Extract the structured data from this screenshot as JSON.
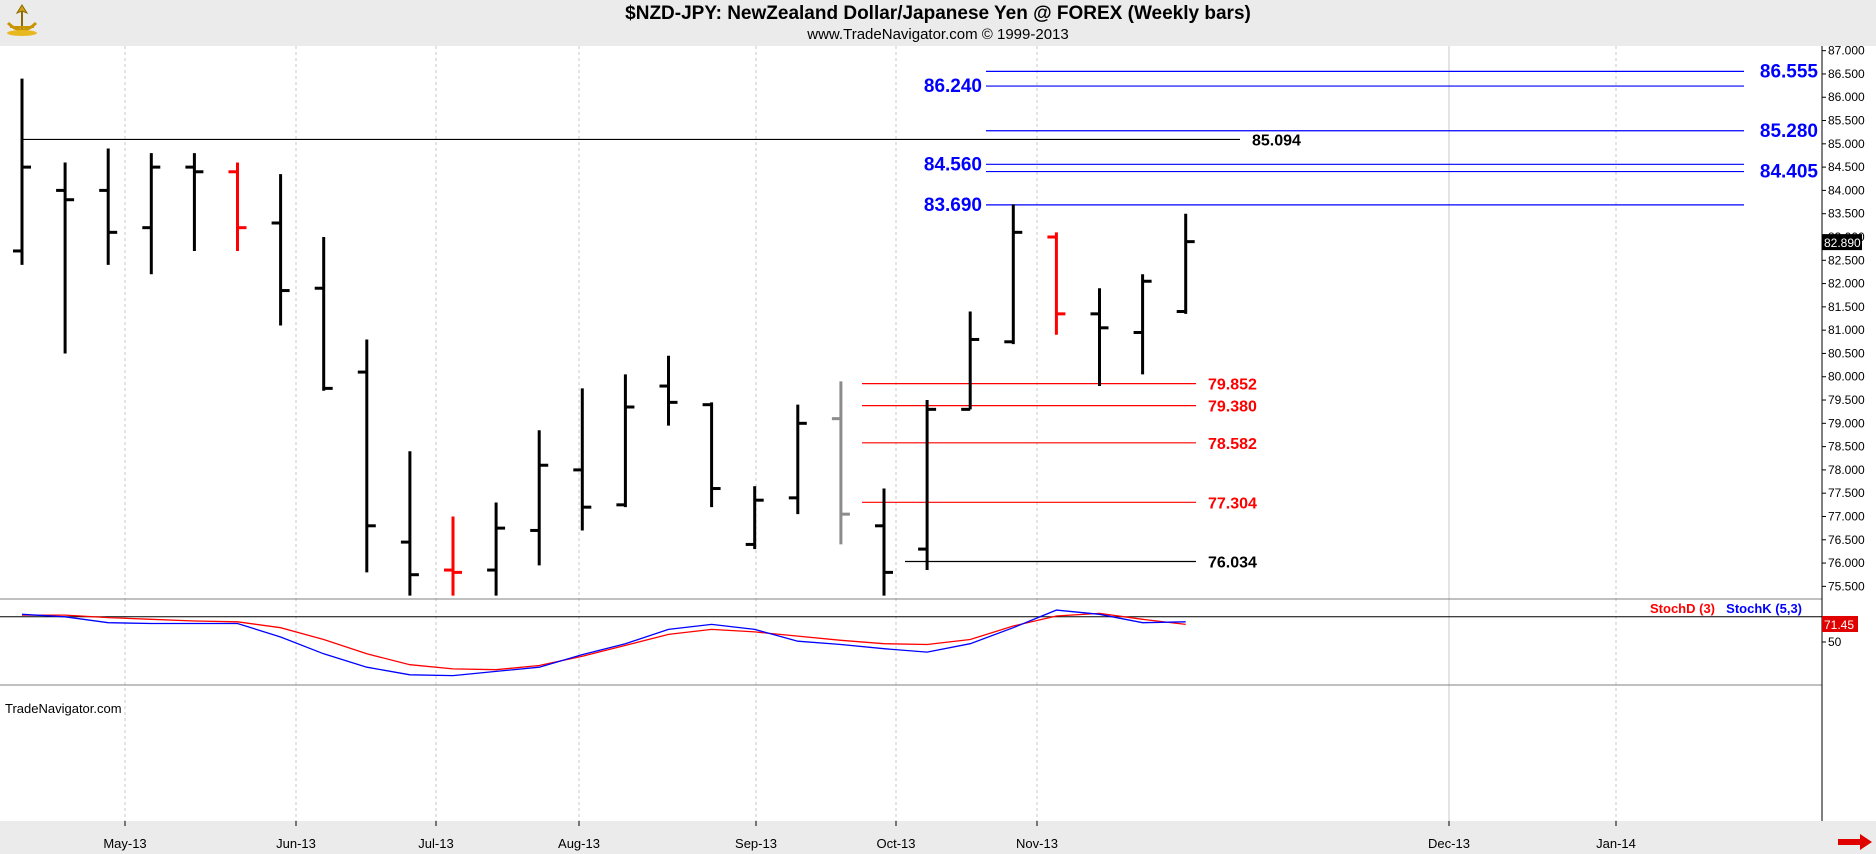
{
  "title": "$NZD-JPY:  NewZealand Dollar/Japanese Yen @ FOREX  (Weekly bars)",
  "subtitle": "www.TradeNavigator.com © 1999-2013",
  "watermark": "TradeNavigator.com",
  "colors": {
    "up_bar": "#000000",
    "red_bar": "#ff0000",
    "gray_bar": "#8c8c8c",
    "blue_level": "#0000ff",
    "red_level": "#ff0000",
    "black_level": "#000000",
    "stoch_d": "#ff0000",
    "stoch_k": "#0000ff",
    "background": "#ffffff",
    "header_bg": "#ebebeb"
  },
  "chart_data": [
    {
      "type": "ohlc",
      "ylim": [
        75.25,
        87.1
      ],
      "y_ticks": [
        "75.500",
        "76.000",
        "76.500",
        "77.000",
        "77.500",
        "78.000",
        "78.500",
        "79.000",
        "79.500",
        "80.000",
        "80.500",
        "81.000",
        "81.500",
        "82.000",
        "82.500",
        "83.000",
        "83.500",
        "84.000",
        "84.500",
        "85.000",
        "85.500",
        "86.000",
        "86.500",
        "87.000"
      ],
      "x_labels": [
        "May-13",
        "Jun-13",
        "Jul-13",
        "Aug-13",
        "Sep-13",
        "Oct-13",
        "Nov-13",
        "Dec-13",
        "Jan-14"
      ],
      "last_price": "82.890",
      "bars": [
        {
          "open": 82.7,
          "high": 86.4,
          "low": 82.4,
          "close": 84.5,
          "color": "black"
        },
        {
          "open": 84.0,
          "high": 84.6,
          "low": 80.5,
          "close": 83.8,
          "color": "black"
        },
        {
          "open": 84.0,
          "high": 84.9,
          "low": 82.4,
          "close": 83.1,
          "color": "black"
        },
        {
          "open": 83.2,
          "high": 84.8,
          "low": 82.2,
          "close": 84.5,
          "color": "black"
        },
        {
          "open": 84.5,
          "high": 84.8,
          "low": 82.7,
          "close": 84.4,
          "color": "black"
        },
        {
          "open": 84.4,
          "high": 84.6,
          "low": 82.7,
          "close": 83.2,
          "color": "red"
        },
        {
          "open": 83.3,
          "high": 84.35,
          "low": 81.1,
          "close": 81.85,
          "color": "black"
        },
        {
          "open": 81.9,
          "high": 83.0,
          "low": 79.7,
          "close": 79.75,
          "color": "black"
        },
        {
          "open": 80.1,
          "high": 80.8,
          "low": 75.8,
          "close": 76.8,
          "color": "black"
        },
        {
          "open": 76.45,
          "high": 78.4,
          "low": 75.3,
          "close": 75.75,
          "color": "black"
        },
        {
          "open": 75.85,
          "high": 77.0,
          "low": 75.3,
          "close": 75.8,
          "color": "red"
        },
        {
          "open": 75.85,
          "high": 77.3,
          "low": 75.3,
          "close": 76.75,
          "color": "black"
        },
        {
          "open": 76.7,
          "high": 78.85,
          "low": 75.95,
          "close": 78.1,
          "color": "black"
        },
        {
          "open": 78.0,
          "high": 79.75,
          "low": 76.7,
          "close": 77.2,
          "color": "black"
        },
        {
          "open": 77.25,
          "high": 80.05,
          "low": 77.2,
          "close": 79.35,
          "color": "black"
        },
        {
          "open": 79.8,
          "high": 80.45,
          "low": 78.95,
          "close": 79.45,
          "color": "black"
        },
        {
          "open": 79.4,
          "high": 79.45,
          "low": 77.2,
          "close": 77.6,
          "color": "black"
        },
        {
          "open": 76.4,
          "high": 77.65,
          "low": 76.3,
          "close": 77.35,
          "color": "black"
        },
        {
          "open": 77.4,
          "high": 79.4,
          "low": 77.05,
          "close": 79.0,
          "color": "black"
        },
        {
          "open": 79.1,
          "high": 79.9,
          "low": 76.4,
          "close": 77.05,
          "color": "gray"
        },
        {
          "open": 76.8,
          "high": 77.6,
          "low": 75.3,
          "close": 75.8,
          "color": "black"
        },
        {
          "open": 76.3,
          "high": 79.5,
          "low": 75.85,
          "close": 79.3,
          "color": "black"
        },
        {
          "open": 79.3,
          "high": 81.4,
          "low": 79.3,
          "close": 80.8,
          "color": "black"
        },
        {
          "open": 80.75,
          "high": 83.7,
          "low": 80.7,
          "close": 83.1,
          "color": "black"
        },
        {
          "open": 83.0,
          "high": 83.1,
          "low": 80.9,
          "close": 81.35,
          "color": "red"
        },
        {
          "open": 81.35,
          "high": 81.9,
          "low": 79.8,
          "close": 81.05,
          "color": "black"
        },
        {
          "open": 80.95,
          "high": 82.2,
          "low": 80.05,
          "close": 82.05,
          "color": "black"
        },
        {
          "open": 81.4,
          "high": 83.5,
          "low": 81.35,
          "close": 82.9,
          "color": "black"
        }
      ],
      "levels": [
        {
          "value": 86.555,
          "label": "86.555",
          "color": "blue",
          "x0": 986,
          "x1": 1744,
          "label_pos": "right"
        },
        {
          "value": 86.24,
          "label": "86.240",
          "color": "blue",
          "x0": 986,
          "x1": 1744,
          "label_pos": "left"
        },
        {
          "value": 85.28,
          "label": "85.280",
          "color": "blue",
          "x0": 986,
          "x1": 1744,
          "label_pos": "right"
        },
        {
          "value": 85.094,
          "label": "85.094",
          "color": "black",
          "x0": 22,
          "x1": 1240,
          "label_pos": "end"
        },
        {
          "value": 84.56,
          "label": "84.560",
          "color": "blue",
          "x0": 986,
          "x1": 1744,
          "label_pos": "left"
        },
        {
          "value": 84.405,
          "label": "84.405",
          "color": "blue",
          "x0": 986,
          "x1": 1744,
          "label_pos": "right"
        },
        {
          "value": 83.69,
          "label": "83.690",
          "color": "blue",
          "x0": 986,
          "x1": 1744,
          "label_pos": "left"
        },
        {
          "value": 79.852,
          "label": "79.852",
          "color": "red",
          "x0": 862,
          "x1": 1196,
          "label_pos": "end"
        },
        {
          "value": 79.38,
          "label": "79.380",
          "color": "red",
          "x0": 862,
          "x1": 1196,
          "label_pos": "end"
        },
        {
          "value": 78.582,
          "label": "78.582",
          "color": "red",
          "x0": 862,
          "x1": 1196,
          "label_pos": "end"
        },
        {
          "value": 77.304,
          "label": "77.304",
          "color": "red",
          "x0": 862,
          "x1": 1196,
          "label_pos": "end"
        },
        {
          "value": 76.034,
          "label": "76.034",
          "color": "black",
          "x0": 905,
          "x1": 1196,
          "label_pos": "end"
        }
      ]
    },
    {
      "type": "line",
      "ylim": [
        0,
        100
      ],
      "y_ticks": [
        "50"
      ],
      "reference_line": 80,
      "legend": [
        "StochD (3)",
        "StochK (5,3)"
      ],
      "last_value": "71.45",
      "series": [
        {
          "name": "StochD (3)",
          "color": "red",
          "values": [
            82,
            82,
            79,
            77,
            75,
            74,
            67,
            53,
            36,
            23,
            18,
            17,
            22,
            33,
            46,
            59,
            65,
            62,
            57,
            52,
            48,
            47,
            53,
            69,
            81,
            84,
            77,
            71
          ]
        },
        {
          "name": "StochK (5,3)",
          "color": "blue",
          "values": [
            83,
            80,
            73,
            72,
            72,
            72,
            56,
            36,
            20,
            11,
            10,
            15,
            20,
            35,
            48,
            65,
            71,
            65,
            51,
            47,
            42,
            38,
            48,
            67,
            88,
            83,
            73,
            74
          ]
        }
      ]
    }
  ]
}
